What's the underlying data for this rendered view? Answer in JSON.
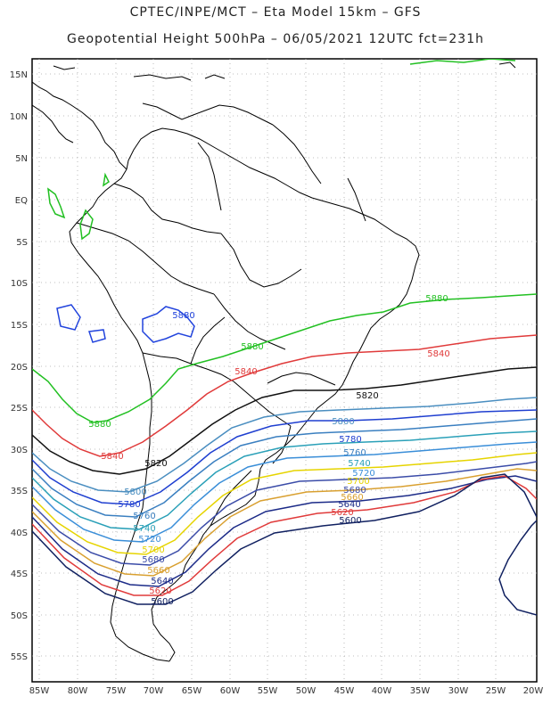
{
  "title": {
    "line1": "CPTEC/INPE/MCT  –   Eta Model 15km –  GFS",
    "line2": "Geopotential Height 500hPa – 06/05/2021 12UTC fct=231h"
  },
  "axes": {
    "lat_labels": [
      "15N",
      "10N",
      "5N",
      "EQ",
      "5S",
      "10S",
      "15S",
      "20S",
      "25S",
      "30S",
      "35S",
      "40S",
      "45S",
      "50S",
      "55S"
    ],
    "lon_labels": [
      "85W",
      "80W",
      "75W",
      "70W",
      "65W",
      "60W",
      "55W",
      "50W",
      "45W",
      "40W",
      "35W",
      "30W",
      "25W",
      "20W"
    ]
  },
  "contour_labels": [
    {
      "text": "5880",
      "color": "#22c022"
    },
    {
      "text": "5880",
      "color": "#22c022"
    },
    {
      "text": "5880",
      "color": "#22c022"
    },
    {
      "text": "5880",
      "color": "#2244dd"
    },
    {
      "text": "5840",
      "color": "#e03a3a"
    },
    {
      "text": "5840",
      "color": "#e03a3a"
    },
    {
      "text": "5840",
      "color": "#e03a3a"
    },
    {
      "text": "5820",
      "color": "#111111"
    },
    {
      "text": "5820",
      "color": "#111111"
    },
    {
      "text": "5800",
      "color": "#4a8ec0"
    },
    {
      "text": "5800",
      "color": "#4a8ec0"
    },
    {
      "text": "5780",
      "color": "#1f3fd0"
    },
    {
      "text": "5780",
      "color": "#1f3fd0"
    },
    {
      "text": "5760",
      "color": "#3a7fc0"
    },
    {
      "text": "5760",
      "color": "#3a7fc0"
    },
    {
      "text": "5740",
      "color": "#2aa0b8"
    },
    {
      "text": "5740",
      "color": "#2aa0b8"
    },
    {
      "text": "5720",
      "color": "#3a8ed8"
    },
    {
      "text": "5720",
      "color": "#3a8ed8"
    },
    {
      "text": "5700",
      "color": "#e6d400"
    },
    {
      "text": "5700",
      "color": "#e6d400"
    },
    {
      "text": "5680",
      "color": "#3b4ca8"
    },
    {
      "text": "5680",
      "color": "#3b4ca8"
    },
    {
      "text": "5660",
      "color": "#d9a030"
    },
    {
      "text": "5660",
      "color": "#d9a030"
    },
    {
      "text": "5640",
      "color": "#1c2b88"
    },
    {
      "text": "5640",
      "color": "#1c2b88"
    },
    {
      "text": "5620",
      "color": "#e03a3a"
    },
    {
      "text": "5620",
      "color": "#e03a3a"
    },
    {
      "text": "5600",
      "color": "#102060"
    },
    {
      "text": "5600",
      "color": "#102060"
    }
  ],
  "colors": {
    "frame": "#000000",
    "grid": "#aaaaaa",
    "coast": "#000000"
  }
}
